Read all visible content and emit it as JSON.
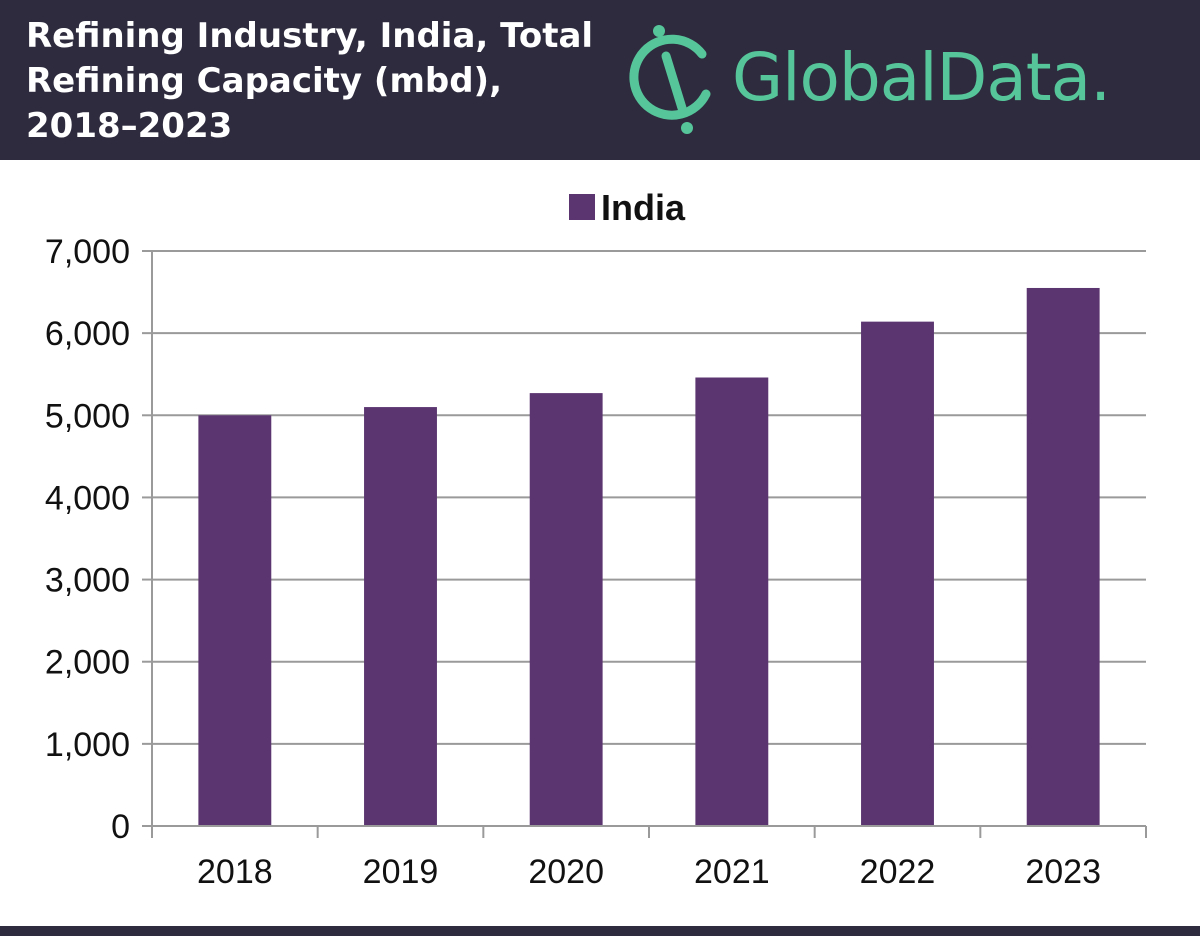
{
  "header": {
    "title_line1": "Refining Industry, India, Total",
    "title_line2": "Refining Capacity (mbd),",
    "title_line3": "2018–2023"
  },
  "brand": {
    "wordmark": "GlobalData.",
    "logo_icon": "globaldata-logo-icon",
    "color": "#56c69a"
  },
  "colors": {
    "header_bg": "#2e2b3e",
    "bar": "#5a3570",
    "grid": "#9a9a9a"
  },
  "chart_data": {
    "type": "bar",
    "categories": [
      "2018",
      "2019",
      "2020",
      "2021",
      "2022",
      "2023"
    ],
    "series": [
      {
        "name": "India",
        "values": [
          5000,
          5100,
          5270,
          5460,
          6140,
          6550
        ]
      }
    ],
    "ylim": [
      0,
      7000
    ],
    "yticks": [
      "0",
      "1,000",
      "2,000",
      "3,000",
      "4,000",
      "5,000",
      "6,000",
      "7,000"
    ],
    "ytick_values": [
      0,
      1000,
      2000,
      3000,
      4000,
      5000,
      6000,
      7000
    ],
    "grid": true,
    "legend": "top-center",
    "xlabel": "",
    "ylabel": ""
  }
}
